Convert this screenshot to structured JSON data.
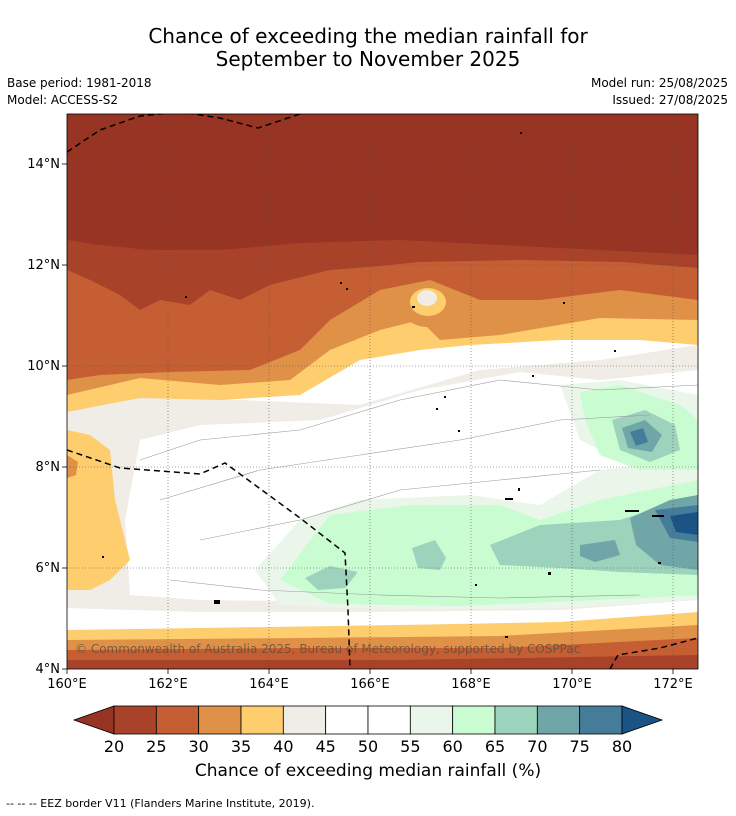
{
  "header": {
    "title_line1": "Chance of exceeding the median rainfall for",
    "title_line2": "September to November 2025",
    "base_period": "Base period: 1981-2018",
    "model": "Model: ACCESS-S2",
    "model_run": "Model run: 25/08/2025",
    "issued": "Issued: 27/08/2025"
  },
  "map": {
    "lat_labels": [
      "14°N",
      "12°N",
      "10°N",
      "8°N",
      "6°N",
      "4°N"
    ],
    "lon_labels": [
      "160°E",
      "162°E",
      "164°E",
      "166°E",
      "168°E",
      "170°E",
      "172°E"
    ],
    "lat_range": [
      4,
      15
    ],
    "lon_range": [
      160,
      172.5
    ],
    "copyright": "© Commonwealth of Australia 2025, Bureau of Meteorology, supported by COSPPac"
  },
  "colorbar": {
    "ticks": [
      "20",
      "25",
      "30",
      "35",
      "40",
      "45",
      "50",
      "55",
      "60",
      "65",
      "70",
      "75",
      "80"
    ],
    "colors": [
      "#a8432a",
      "#c55f33",
      "#e09148",
      "#fdcd6e",
      "#f0ece6",
      "#ffffff",
      "#ffffff",
      "#ebf6ea",
      "#c9fcd0",
      "#9dd2bd",
      "#71a6a8",
      "#457c9a"
    ],
    "low_color": "#973423",
    "high_color": "#1a5484",
    "title": "Chance of exceeding median rainfall (%)"
  },
  "footer": {
    "legend_text": "-- -- -- EEZ border V11 (Flanders Marine Institute, 2019)."
  }
}
